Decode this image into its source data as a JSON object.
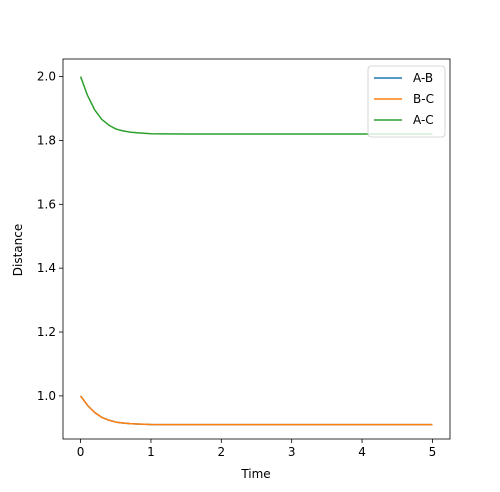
{
  "chart_data": {
    "type": "line",
    "title": "",
    "xlabel": "Time",
    "ylabel": "Distance",
    "xlim": [
      -0.25,
      5.25
    ],
    "ylim": [
      0.865,
      2.055
    ],
    "xticks": [
      0,
      1,
      2,
      3,
      4,
      5
    ],
    "yticks": [
      1.0,
      1.2,
      1.4,
      1.6,
      1.8,
      2.0
    ],
    "xtick_labels": [
      "0",
      "1",
      "2",
      "3",
      "4",
      "5"
    ],
    "ytick_labels": [
      "1.0",
      "1.2",
      "1.4",
      "1.6",
      "1.8",
      "2.0"
    ],
    "grid": false,
    "legend_position": "top-right",
    "series": [
      {
        "name": "A-B",
        "color": "#1f77b4",
        "x": [
          0,
          0.1,
          0.2,
          0.3,
          0.4,
          0.5,
          0.6,
          0.7,
          0.8,
          1.0,
          1.2,
          1.5,
          2.0,
          3.0,
          4.0,
          5.0
        ],
        "y": [
          1.0,
          0.97,
          0.948,
          0.933,
          0.924,
          0.918,
          0.915,
          0.913,
          0.912,
          0.9105,
          0.9102,
          0.91,
          0.91,
          0.91,
          0.91,
          0.91
        ]
      },
      {
        "name": "B-C",
        "color": "#ff7f0e",
        "x": [
          0,
          0.1,
          0.2,
          0.3,
          0.4,
          0.5,
          0.6,
          0.7,
          0.8,
          1.0,
          1.2,
          1.5,
          2.0,
          3.0,
          4.0,
          5.0
        ],
        "y": [
          1.0,
          0.97,
          0.948,
          0.933,
          0.924,
          0.918,
          0.915,
          0.913,
          0.912,
          0.9105,
          0.9102,
          0.91,
          0.91,
          0.91,
          0.91,
          0.91
        ]
      },
      {
        "name": "A-C",
        "color": "#2ca02c",
        "x": [
          0,
          0.1,
          0.2,
          0.3,
          0.4,
          0.5,
          0.6,
          0.7,
          0.8,
          1.0,
          1.2,
          1.5,
          2.0,
          3.0,
          4.0,
          5.0
        ],
        "y": [
          2.0,
          1.94,
          1.896,
          1.866,
          1.848,
          1.836,
          1.83,
          1.826,
          1.824,
          1.821,
          1.8204,
          1.82,
          1.82,
          1.82,
          1.82,
          1.82
        ]
      }
    ]
  }
}
